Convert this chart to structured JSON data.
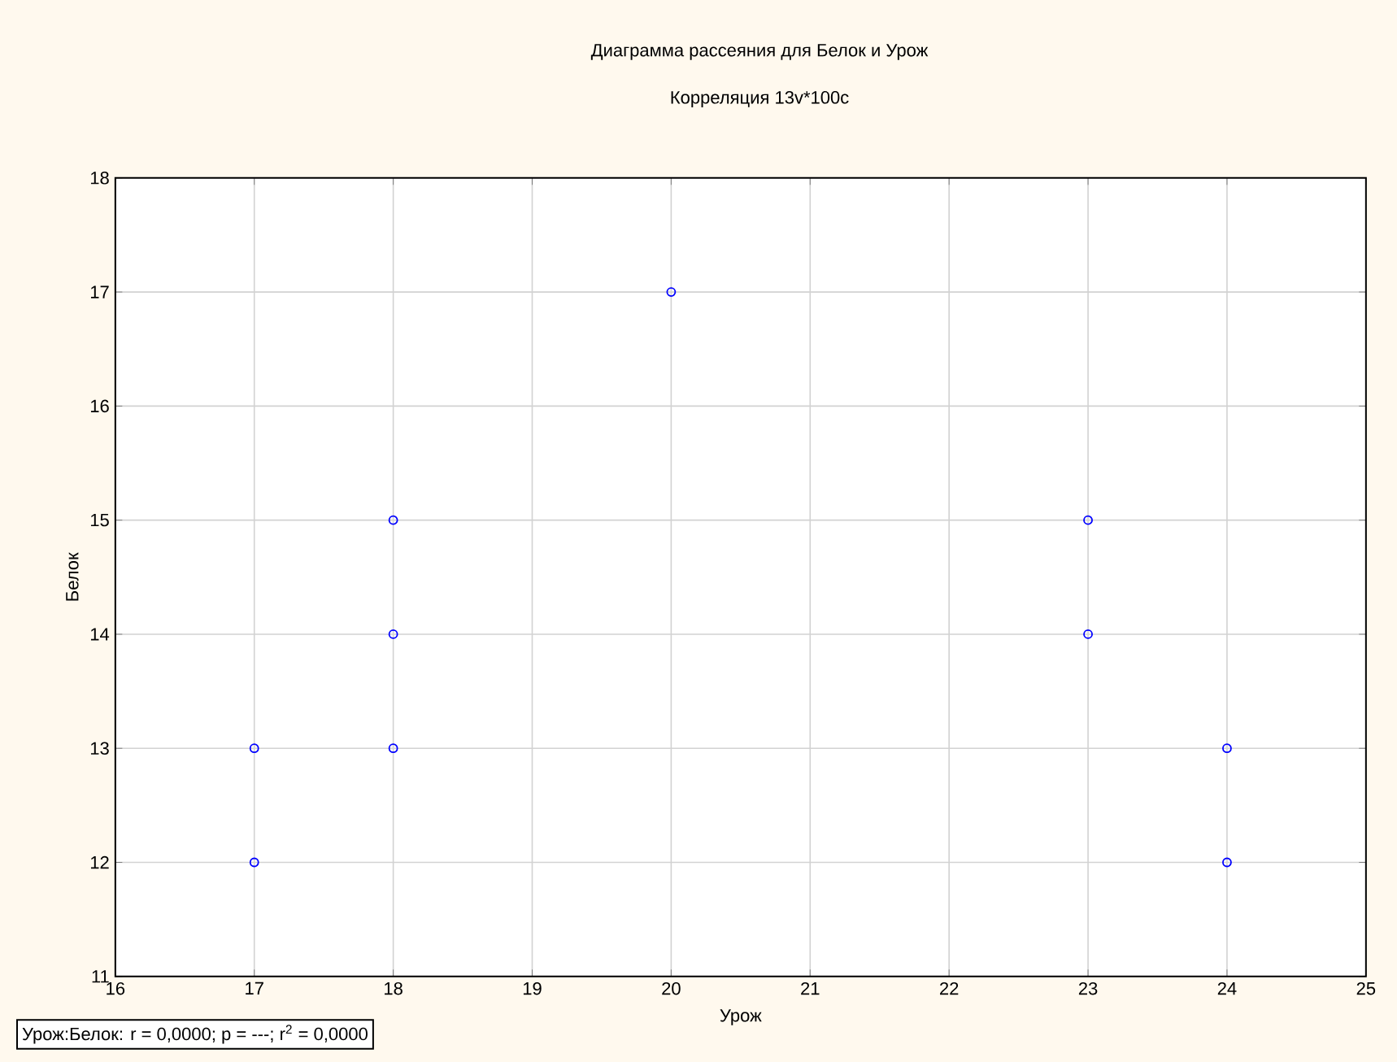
{
  "chart_data": {
    "type": "scatter",
    "title": "Диаграмма рассеяния для Белок и Урож",
    "subtitle": "Корреляция 13v*100c",
    "xlabel": "Урож",
    "ylabel": "Белок",
    "x": [
      17,
      17,
      18,
      18,
      18,
      20,
      23,
      23,
      24,
      24
    ],
    "series": [
      {
        "color": "#0000ff",
        "values": [
          12,
          13,
          13,
          14,
          15,
          17,
          14,
          15,
          12,
          13
        ]
      }
    ],
    "xlim": [
      16,
      25
    ],
    "ylim": [
      11,
      18
    ],
    "xticks": [
      16,
      17,
      18,
      19,
      20,
      21,
      22,
      23,
      24,
      25
    ],
    "yticks": [
      11,
      12,
      13,
      14,
      15,
      16,
      17,
      18
    ],
    "grid": true,
    "marker": "circle",
    "annotations": [
      "Урож:Белок:   r = 0,0000; p = ---; r$^{2}$ = 0,0000"
    ]
  }
}
